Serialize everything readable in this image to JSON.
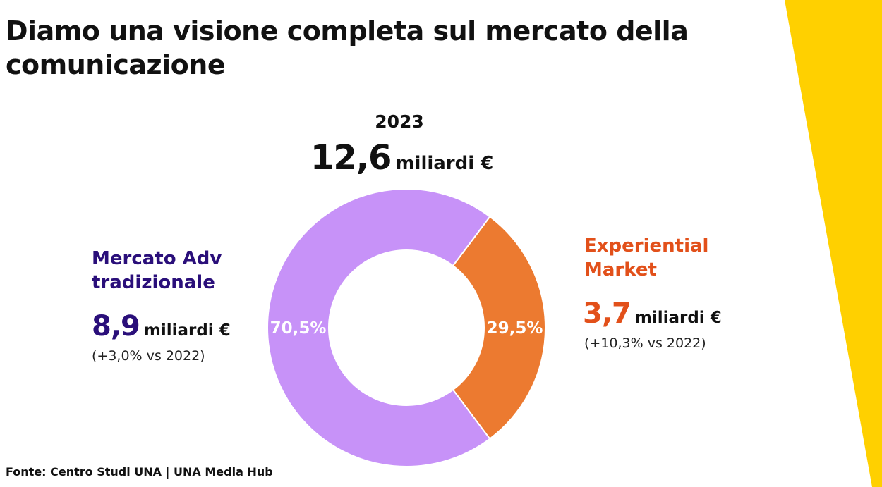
{
  "title": "Diamo una visione completa sul mercato della comunicazione",
  "colors": {
    "accent_yellow": "#FFD000",
    "traditional": "#C792F8",
    "experiential": "#EC7A30",
    "traditional_text": "#2A0F7A",
    "experiential_text": "#E2501A"
  },
  "chart_data": {
    "type": "pie",
    "title": "2023",
    "total": {
      "value": "12,6",
      "unit": "miliardi €"
    },
    "series": [
      {
        "name": "Mercato Adv tradizionale",
        "value": 70.5,
        "label": "70,5%",
        "amount": "8,9",
        "unit": "miliardi €",
        "change": "(+3,0% vs 2022)",
        "color": "#C792F8"
      },
      {
        "name": "Experiential Market",
        "value": 29.5,
        "label": "29,5%",
        "amount": "3,7",
        "unit": "miliardi €",
        "change": "(+10,3% vs 2022)",
        "color": "#EC7A30"
      }
    ]
  },
  "source": "Fonte: Centro Studi UNA | UNA Media Hub"
}
